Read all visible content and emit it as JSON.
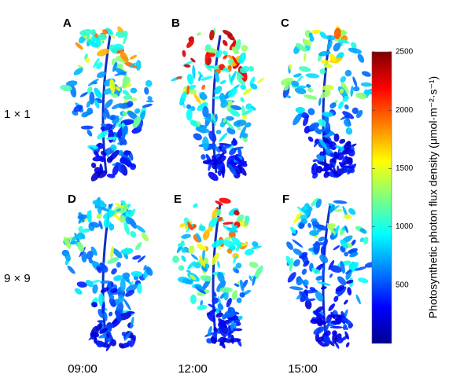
{
  "panels": [
    {
      "label": "A"
    },
    {
      "label": "B"
    },
    {
      "label": "C"
    },
    {
      "label": "D"
    },
    {
      "label": "E"
    },
    {
      "label": "F"
    }
  ],
  "row_labels": [
    "1 × 1",
    "9 × 9"
  ],
  "column_labels": [
    "09:00",
    "12:00",
    "15:00"
  ],
  "colorbar": {
    "label": "Photosynthetic photon flux density (μmol·m⁻²·s⁻¹)",
    "lim": [
      0,
      2500
    ],
    "ticks": [
      500,
      1000,
      1500,
      2000,
      2500
    ]
  }
}
